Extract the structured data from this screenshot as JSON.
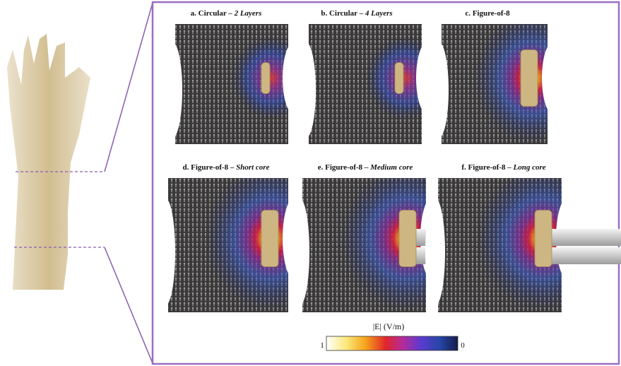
{
  "figure": {
    "panels": [
      {
        "label": "a. Circular – ",
        "emphasis": "2 Layers"
      },
      {
        "label": "b. Circular – ",
        "emphasis": "4 Layers"
      },
      {
        "label": "c. Figure-of-8"
      },
      {
        "label": "d. Figure-of-8 – ",
        "emphasis": "Short core"
      },
      {
        "label": "e. Figure-of-8 – ",
        "emphasis": "Medium core"
      },
      {
        "label": "f. Figure-of-8 – ",
        "emphasis": "Long core"
      }
    ],
    "colorbar": {
      "title": "|E| (V/m)",
      "left_label": "1",
      "right_label": "0"
    }
  }
}
